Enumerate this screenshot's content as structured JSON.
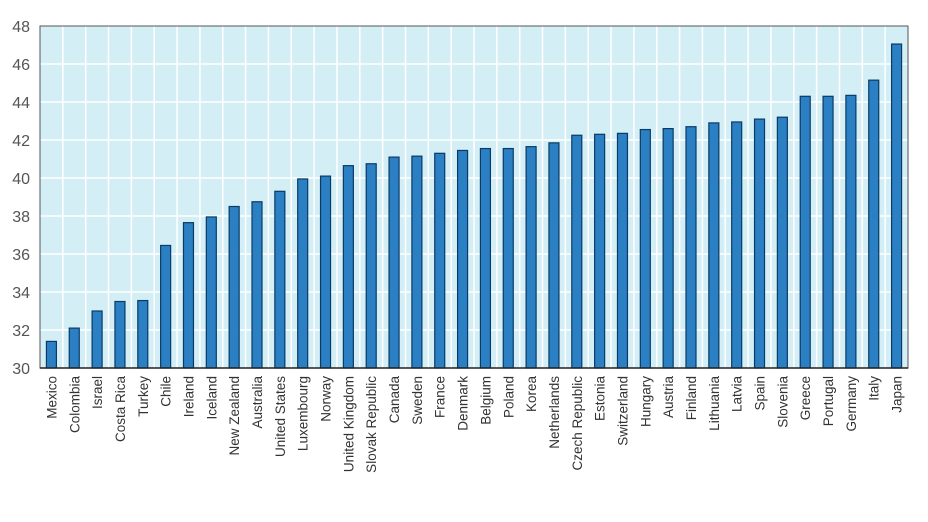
{
  "chart_data": {
    "type": "bar",
    "title": "",
    "xlabel": "",
    "ylabel": "",
    "ylim": [
      30,
      48
    ],
    "yticks": [
      30,
      32,
      34,
      36,
      38,
      40,
      42,
      44,
      46,
      48
    ],
    "grid": true,
    "categories": [
      "Mexico",
      "Colombia",
      "Israel",
      "Costa Rica",
      "Turkey",
      "Chile",
      "Ireland",
      "Iceland",
      "New Zealand",
      "Australia",
      "United States",
      "Luxembourg",
      "Norway",
      "United Kingdom",
      "Slovak Republic",
      "Canada",
      "Sweden",
      "France",
      "Denmark",
      "Belgium",
      "Poland",
      "Korea",
      "Netherlands",
      "Czech Republic",
      "Estonia",
      "Switzerland",
      "Hungary",
      "Austria",
      "Finland",
      "Lithuania",
      "Latvia",
      "Spain",
      "Slovenia",
      "Greece",
      "Portugal",
      "Germany",
      "Italy",
      "Japan"
    ],
    "values": [
      31.4,
      32.1,
      33.0,
      33.5,
      33.55,
      36.45,
      37.65,
      37.95,
      38.5,
      38.75,
      39.3,
      39.95,
      40.1,
      40.65,
      40.75,
      41.1,
      41.15,
      41.3,
      41.45,
      41.55,
      41.55,
      41.65,
      41.85,
      42.25,
      42.3,
      42.35,
      42.55,
      42.6,
      42.7,
      42.9,
      42.95,
      43.1,
      43.2,
      44.3,
      44.3,
      44.35,
      45.15,
      47.05
    ],
    "colors": {
      "bar": "#2b7fc3",
      "bar_outline": "#0b3a66",
      "plot_background": "#d4eef6",
      "grid": "#ffffff"
    }
  }
}
